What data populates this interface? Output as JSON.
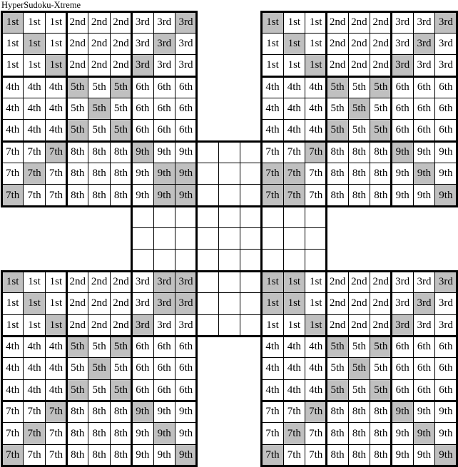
{
  "title": "HyperSudoku-Xtreme",
  "colors": {
    "page_background": "#ffffff",
    "cell_background": "#ffffff",
    "shaded_cell": "#c0c0c0",
    "grid_line": "#000000",
    "text": "#000000"
  },
  "board": {
    "cell_labels": [
      [
        "1st",
        "1st",
        "1st",
        "2nd",
        "2nd",
        "2nd",
        "3rd",
        "3rd",
        "3rd"
      ],
      [
        "1st",
        "1st",
        "1st",
        "2nd",
        "2nd",
        "2nd",
        "3rd",
        "3rd",
        "3rd"
      ],
      [
        "1st",
        "1st",
        "1st",
        "2nd",
        "2nd",
        "2nd",
        "3rd",
        "3rd",
        "3rd"
      ],
      [
        "4th",
        "4th",
        "4th",
        "5th",
        "5th",
        "5th",
        "6th",
        "6th",
        "6th"
      ],
      [
        "4th",
        "4th",
        "4th",
        "5th",
        "5th",
        "5th",
        "6th",
        "6th",
        "6th"
      ],
      [
        "4th",
        "4th",
        "4th",
        "5th",
        "5th",
        "5th",
        "6th",
        "6th",
        "6th"
      ],
      [
        "7th",
        "7th",
        "7th",
        "8th",
        "8th",
        "8th",
        "9th",
        "9th",
        "9th"
      ],
      [
        "7th",
        "7th",
        "7th",
        "8th",
        "8th",
        "8th",
        "9th",
        "9th",
        "9th"
      ],
      [
        "7th",
        "7th",
        "7th",
        "8th",
        "8th",
        "8th",
        "9th",
        "9th",
        "9th"
      ]
    ],
    "grids": [
      {
        "id": "center",
        "position": "center",
        "has_labels": false,
        "shaded": []
      },
      {
        "id": "top-left",
        "position": "top-left",
        "has_labels": true,
        "shaded": [
          [
            0,
            0
          ],
          [
            0,
            8
          ],
          [
            1,
            1
          ],
          [
            1,
            7
          ],
          [
            2,
            2
          ],
          [
            2,
            6
          ],
          [
            3,
            3
          ],
          [
            3,
            5
          ],
          [
            4,
            4
          ],
          [
            5,
            3
          ],
          [
            5,
            5
          ],
          [
            6,
            2
          ],
          [
            6,
            6
          ],
          [
            7,
            1
          ],
          [
            7,
            7
          ],
          [
            7,
            8
          ],
          [
            8,
            0
          ],
          [
            8,
            7
          ],
          [
            8,
            8
          ]
        ]
      },
      {
        "id": "top-right",
        "position": "top-right",
        "has_labels": true,
        "shaded": [
          [
            0,
            0
          ],
          [
            0,
            8
          ],
          [
            1,
            1
          ],
          [
            1,
            7
          ],
          [
            2,
            2
          ],
          [
            2,
            6
          ],
          [
            3,
            3
          ],
          [
            3,
            5
          ],
          [
            4,
            4
          ],
          [
            5,
            3
          ],
          [
            5,
            5
          ],
          [
            6,
            2
          ],
          [
            6,
            6
          ],
          [
            7,
            0
          ],
          [
            7,
            1
          ],
          [
            7,
            7
          ],
          [
            8,
            0
          ],
          [
            8,
            1
          ],
          [
            8,
            8
          ]
        ]
      },
      {
        "id": "bottom-left",
        "position": "bottom-left",
        "has_labels": true,
        "shaded": [
          [
            0,
            0
          ],
          [
            0,
            7
          ],
          [
            0,
            8
          ],
          [
            1,
            1
          ],
          [
            1,
            7
          ],
          [
            1,
            8
          ],
          [
            2,
            2
          ],
          [
            2,
            6
          ],
          [
            3,
            3
          ],
          [
            3,
            5
          ],
          [
            4,
            4
          ],
          [
            5,
            3
          ],
          [
            5,
            5
          ],
          [
            6,
            2
          ],
          [
            6,
            6
          ],
          [
            7,
            1
          ],
          [
            7,
            7
          ],
          [
            8,
            0
          ],
          [
            8,
            8
          ]
        ]
      },
      {
        "id": "bottom-right",
        "position": "bottom-right",
        "has_labels": true,
        "shaded": [
          [
            0,
            0
          ],
          [
            0,
            1
          ],
          [
            0,
            8
          ],
          [
            1,
            0
          ],
          [
            1,
            1
          ],
          [
            1,
            7
          ],
          [
            2,
            2
          ],
          [
            2,
            6
          ],
          [
            3,
            3
          ],
          [
            3,
            5
          ],
          [
            4,
            4
          ],
          [
            5,
            3
          ],
          [
            5,
            5
          ],
          [
            6,
            2
          ],
          [
            6,
            6
          ],
          [
            7,
            1
          ],
          [
            7,
            7
          ],
          [
            8,
            0
          ],
          [
            8,
            8
          ]
        ]
      }
    ]
  }
}
